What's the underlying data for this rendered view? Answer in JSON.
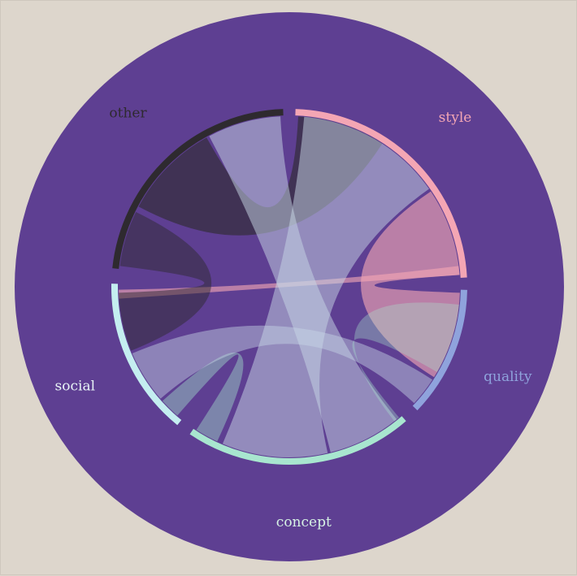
{
  "chart_data": {
    "type": "chord",
    "groups": [
      {
        "name": "style",
        "color": "#f4a6b4",
        "start_deg": 2,
        "end_deg": 87
      },
      {
        "name": "quality",
        "color": "#8fa3dc",
        "start_deg": 91,
        "end_deg": 134
      },
      {
        "name": "concept",
        "color": "#a8e6cf",
        "start_deg": 139,
        "end_deg": 214
      },
      {
        "name": "social",
        "color": "#c4eef0",
        "start_deg": 219,
        "end_deg": 271
      },
      {
        "name": "other",
        "color": "#2e2a2f",
        "start_deg": 276,
        "end_deg": 358
      }
    ],
    "ribbons": [
      {
        "source": "style",
        "target": "other",
        "s": [
          3,
          33
        ],
        "t": [
          298,
          331
        ],
        "color": "#2e2a2f",
        "opacity": 0.62
      },
      {
        "source": "style",
        "target": "style",
        "s": [
          56,
          86
        ],
        "t": [
          92,
          122
        ],
        "color": "#f4a6b4",
        "opacity": 0.62
      },
      {
        "source": "style",
        "target": "social",
        "s": [
          83,
          86
        ],
        "t": [
          266,
          269
        ],
        "color": "#f4a6b4",
        "opacity": 0.62
      },
      {
        "source": "style",
        "target": "concept",
        "s": [
          5,
          55
        ],
        "t": [
          167,
          203
        ],
        "color": "#c8d8e6",
        "opacity": 0.5
      },
      {
        "source": "other",
        "target": "social",
        "s": [
          277,
          296
        ],
        "t": [
          248,
          268
        ],
        "color": "#2e2a2f",
        "opacity": 0.5
      },
      {
        "source": "other",
        "target": "concept",
        "s": [
          332,
          357
        ],
        "t": [
          141,
          166
        ],
        "color": "#c8d8e6",
        "opacity": 0.5
      },
      {
        "source": "concept",
        "target": "social",
        "s": [
          205,
          213
        ],
        "t": [
          221,
          228
        ],
        "color": "#a8e6cf",
        "opacity": 0.42
      },
      {
        "source": "quality",
        "target": "social",
        "s": [
          123,
          133
        ],
        "t": [
          229,
          247
        ],
        "color": "#c8d8e6",
        "opacity": 0.45
      },
      {
        "source": "concept",
        "target": "quality",
        "s": [
          140,
          142
        ],
        "t": [
          96,
          120
        ],
        "color": "#a8e6cf",
        "opacity": 0.35
      }
    ]
  },
  "colors": {
    "background": "#ddd6cc",
    "disc": "#5e3f92"
  }
}
